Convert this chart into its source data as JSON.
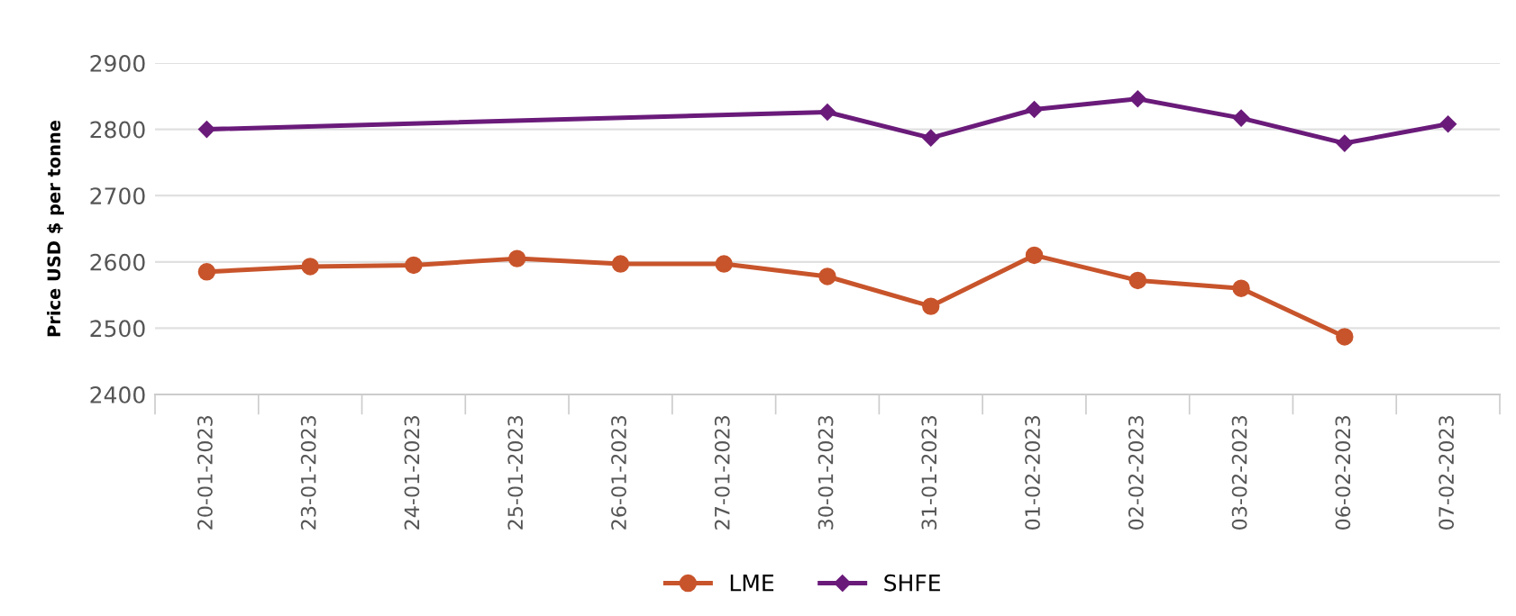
{
  "chart_data": {
    "type": "line",
    "ylabel": "Price USD $ per tonne",
    "categories": [
      "20-01-2023",
      "23-01-2023",
      "24-01-2023",
      "25-01-2023",
      "26-01-2023",
      "27-01-2023",
      "30-01-2023",
      "31-01-2023",
      "01-02-2023",
      "02-02-2023",
      "03-02-2023",
      "06-02-2023",
      "07-02-2023"
    ],
    "series": [
      {
        "name": "LME",
        "color": "#c8542b",
        "marker": "circle",
        "values": [
          2585,
          2593,
          2595,
          2605,
          2597,
          2597,
          2578,
          2533,
          2610,
          2572,
          2560,
          2487,
          null
        ]
      },
      {
        "name": "SHFE",
        "color": "#6a1b7a",
        "marker": "diamond",
        "values": [
          2800,
          null,
          null,
          null,
          null,
          null,
          2826,
          2787,
          2830,
          2846,
          2817,
          2779,
          2808
        ]
      }
    ],
    "ylim": [
      2400,
      2900
    ],
    "yticks": [
      2400,
      2500,
      2600,
      2700,
      2800,
      2900
    ],
    "grid": "y",
    "legend": "bottom"
  }
}
